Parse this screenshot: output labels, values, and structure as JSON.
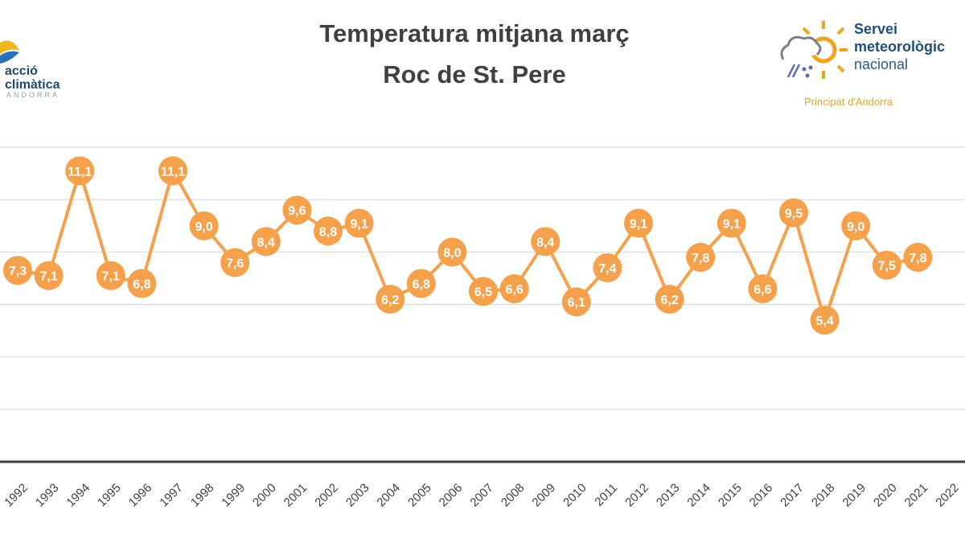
{
  "title_line1": "Temperatura mitjana març",
  "title_line2": "Roc de St. Pere",
  "logo_left": {
    "line1": "acció",
    "line2": "climàtica",
    "line3": "ANDORRA"
  },
  "logo_right": {
    "line1": "Servei",
    "line2": "meteorològic",
    "line3": "nacional",
    "line4": "Principat d'Andorra"
  },
  "colors": {
    "series": "#f5a04a",
    "grid": "#d9d9d9",
    "axis": "#404040",
    "title": "#404040"
  },
  "chart_data": {
    "type": "line",
    "title": "Temperatura mitjana març Roc de St. Pere",
    "categories": [
      "1992",
      "1993",
      "1994",
      "1995",
      "1996",
      "1997",
      "1998",
      "1999",
      "2000",
      "2001",
      "2002",
      "2003",
      "2004",
      "2005",
      "2006",
      "2007",
      "2008",
      "2009",
      "2010",
      "2011",
      "2012",
      "2013",
      "2014",
      "2015",
      "2016",
      "2017",
      "2018",
      "2019",
      "2020",
      "2021",
      "2022"
    ],
    "values": [
      7.3,
      7.1,
      11.1,
      7.1,
      6.8,
      11.1,
      9.0,
      7.6,
      8.4,
      9.6,
      8.8,
      9.1,
      6.2,
      6.8,
      8.0,
      6.5,
      6.6,
      8.4,
      6.1,
      7.4,
      9.1,
      6.2,
      7.8,
      9.1,
      6.6,
      9.5,
      5.4,
      9.0,
      7.5,
      7.8,
      null
    ],
    "data_labels": [
      "7,3",
      "7,1",
      "11,1",
      "7,1",
      "6,8",
      "11,1",
      "9,0",
      "7,6",
      "8,4",
      "9,6",
      "8,8",
      "9,1",
      "6,2",
      "6,8",
      "8,0",
      "6,5",
      "6,6",
      "8,4",
      "6,1",
      "7,4",
      "9,1",
      "6,2",
      "7,8",
      "9,1",
      "6,6",
      "9,5",
      "5,4",
      "9,0",
      "7,5",
      "7,8",
      null
    ],
    "ylim": [
      0,
      12
    ],
    "grid": true,
    "legend": "none"
  }
}
